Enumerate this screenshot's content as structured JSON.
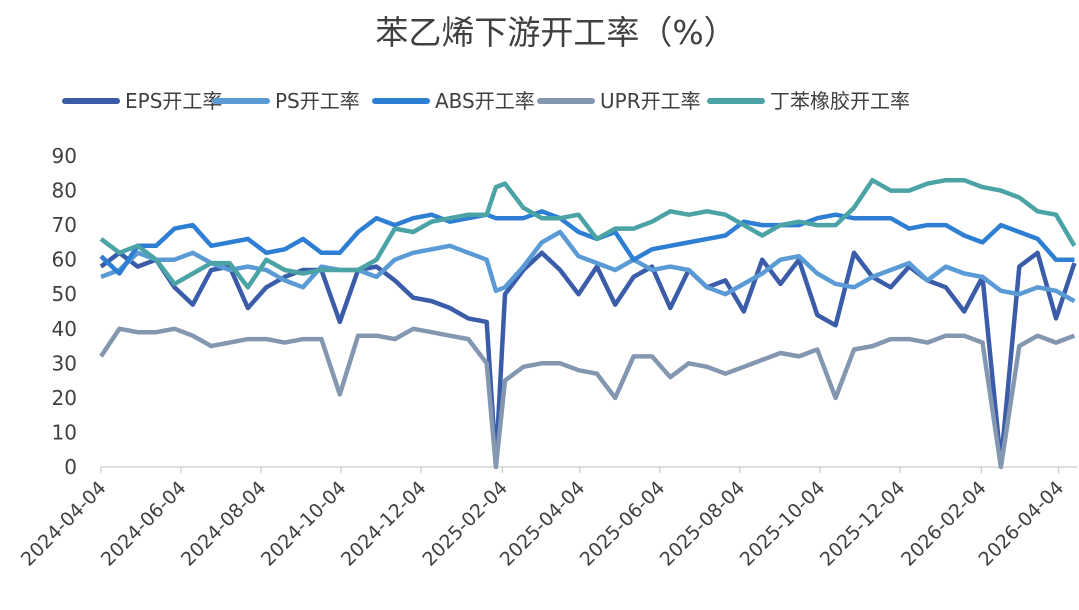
{
  "chart_data": {
    "type": "line",
    "title": "苯乙烯下游开工率（%）",
    "x": [
      "2024-04-04",
      "2024-04-18",
      "2024-05-02",
      "2024-05-16",
      "2024-05-30",
      "2024-06-13",
      "2024-06-27",
      "2024-07-11",
      "2024-07-25",
      "2024-08-08",
      "2024-08-22",
      "2024-09-05",
      "2024-09-19",
      "2024-10-03",
      "2024-10-17",
      "2024-10-31",
      "2024-11-14",
      "2024-11-28",
      "2024-12-12",
      "2024-12-26",
      "2025-01-09",
      "2025-01-23",
      "2025-01-30",
      "2025-02-06",
      "2025-02-20",
      "2025-03-06",
      "2025-03-20",
      "2025-04-03",
      "2025-04-17",
      "2025-05-01",
      "2025-05-15",
      "2025-05-29",
      "2025-06-12",
      "2025-06-26",
      "2025-07-10",
      "2025-07-24",
      "2025-08-07",
      "2025-08-21",
      "2025-09-04",
      "2025-09-18",
      "2025-10-02",
      "2025-10-16",
      "2025-10-30",
      "2025-11-13",
      "2025-11-27",
      "2025-12-11",
      "2025-12-25",
      "2026-01-08",
      "2026-01-22",
      "2026-02-05",
      "2026-02-19",
      "2026-03-05",
      "2026-03-19",
      "2026-04-02",
      "2026-04-16"
    ],
    "series": [
      {
        "name": "EPS开工率",
        "color": "#3b5ca9",
        "values": [
          58,
          62,
          58,
          60,
          52,
          47,
          57,
          58,
          46,
          52,
          55,
          57,
          57,
          42,
          57,
          58,
          54,
          49,
          48,
          46,
          43,
          42,
          1,
          50,
          57,
          62,
          57,
          50,
          58,
          47,
          55,
          58,
          46,
          57,
          52,
          54,
          45,
          60,
          53,
          60,
          44,
          41,
          62,
          55,
          52,
          58,
          54,
          52,
          45,
          55,
          1,
          58,
          62,
          43,
          59
        ]
      },
      {
        "name": "PS开工率",
        "color": "#5b9bd5",
        "values": [
          55,
          57,
          62,
          60,
          60,
          62,
          59,
          57,
          58,
          57,
          54,
          52,
          58,
          57,
          57,
          55,
          60,
          62,
          63,
          64,
          62,
          60,
          51,
          52,
          58,
          65,
          68,
          61,
          59,
          57,
          60,
          57,
          58,
          57,
          52,
          50,
          53,
          56,
          60,
          61,
          56,
          53,
          52,
          55,
          57,
          59,
          54,
          58,
          56,
          55,
          51,
          50,
          52,
          51,
          48
        ]
      },
      {
        "name": "ABS开工率",
        "color": "#2e7fd4",
        "values": [
          61,
          56,
          64,
          64,
          69,
          70,
          64,
          65,
          66,
          62,
          63,
          66,
          62,
          62,
          68,
          72,
          70,
          72,
          73,
          71,
          72,
          73,
          72,
          72,
          72,
          74,
          72,
          68,
          66,
          68,
          60,
          63,
          64,
          65,
          66,
          67,
          71,
          70,
          70,
          70,
          72,
          73,
          72,
          72,
          72,
          69,
          70,
          70,
          67,
          65,
          70,
          68,
          66,
          60,
          60
        ]
      },
      {
        "name": "UPR开工率",
        "color": "#8497b0",
        "values": [
          32,
          40,
          39,
          39,
          40,
          38,
          35,
          36,
          37,
          37,
          36,
          37,
          37,
          21,
          38,
          38,
          37,
          40,
          39,
          38,
          37,
          30,
          0,
          25,
          29,
          30,
          30,
          28,
          27,
          20,
          32,
          32,
          26,
          30,
          29,
          27,
          29,
          31,
          33,
          32,
          34,
          20,
          34,
          35,
          37,
          37,
          36,
          38,
          38,
          36,
          0,
          35,
          38,
          36,
          38
        ]
      },
      {
        "name": "丁苯橡胶开工率",
        "color": "#4ba3a6",
        "values": [
          66,
          62,
          64,
          60,
          53,
          56,
          59,
          59,
          52,
          60,
          57,
          56,
          57,
          57,
          57,
          60,
          69,
          68,
          71,
          72,
          73,
          73,
          81,
          82,
          75,
          72,
          72,
          73,
          66,
          69,
          69,
          71,
          74,
          73,
          74,
          73,
          70,
          67,
          70,
          71,
          70,
          70,
          75,
          83,
          80,
          80,
          82,
          83,
          83,
          81,
          80,
          78,
          74,
          73,
          64
        ]
      }
    ],
    "xlim": [
      "2024-04-04",
      "2026-04-18"
    ],
    "xticks": [
      "2024-04-04",
      "2024-06-04",
      "2024-08-04",
      "2024-10-04",
      "2024-12-04",
      "2025-02-04",
      "2025-04-04",
      "2025-06-04",
      "2025-08-04",
      "2025-10-04",
      "2025-12-04",
      "2026-02-04",
      "2026-04-04"
    ],
    "ylim": [
      0,
      90
    ],
    "yticks": [
      0,
      10,
      20,
      30,
      40,
      50,
      60,
      70,
      80,
      90
    ],
    "legend": "top"
  }
}
